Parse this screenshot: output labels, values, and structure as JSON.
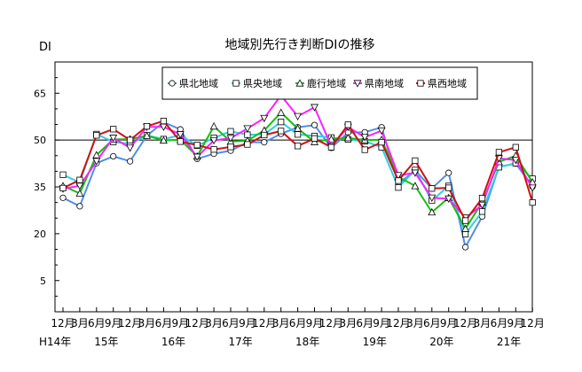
{
  "chart_data": {
    "type": "line",
    "title": "地域別先行き判断DIの推移",
    "ylabel": "DI",
    "ylim": [
      -5,
      75
    ],
    "yticks": [
      5,
      20,
      35,
      50,
      65
    ],
    "reference_line": 50,
    "legend_position": "top",
    "x_month_labels": [
      "12月",
      "3月",
      "6月",
      "9月",
      "12月",
      "3月",
      "6月",
      "9月",
      "12月",
      "3月",
      "6月",
      "9月",
      "12月",
      "3月",
      "6月",
      "9月",
      "12月",
      "3月",
      "6月",
      "9月",
      "12月",
      "3月",
      "6月",
      "9月",
      "12月",
      "3月",
      "6月",
      "9月",
      "12月"
    ],
    "year_labels": [
      {
        "label": "H14年",
        "at": 0
      },
      {
        "label": "15年",
        "at": 2.5
      },
      {
        "label": "16年",
        "at": 6.5
      },
      {
        "label": "17年",
        "at": 10.5
      },
      {
        "label": "18年",
        "at": 14.5
      },
      {
        "label": "19年",
        "at": 18.5
      },
      {
        "label": "20年",
        "at": 22.5
      },
      {
        "label": "21年",
        "at": 26.5
      }
    ],
    "series": [
      {
        "name": "県北地域",
        "color": "#4f8fea",
        "marker": "circle",
        "values": [
          31.5,
          28.8,
          42.6,
          44.8,
          43.2,
          51.4,
          55.7,
          53.4,
          44.0,
          45.6,
          46.6,
          49.3,
          49.3,
          52.0,
          54.1,
          54.8,
          47.5,
          52.4,
          52.5,
          54.1,
          35.9,
          40.3,
          34.5,
          39.5,
          15.7,
          25.5,
          41.4,
          42.5,
          35.1
        ]
      },
      {
        "name": "県央地域",
        "color": "#2ecfe0",
        "marker": "square",
        "values": [
          38.9,
          36.4,
          51.9,
          49.4,
          48.8,
          51.5,
          50.3,
          51.6,
          48.2,
          50.7,
          52.8,
          51.7,
          51.8,
          55.8,
          51.8,
          51.3,
          50.8,
          50.2,
          49.6,
          47.7,
          34.8,
          40.4,
          30.6,
          35.3,
          19.9,
          27.1,
          41.3,
          42.6,
          37.6
        ]
      },
      {
        "name": "鹿行地域",
        "color": "#10c010",
        "marker": "triangle-up",
        "values": [
          35.3,
          32.9,
          45.2,
          50.2,
          50.3,
          51.4,
          49.9,
          50.1,
          44.8,
          54.4,
          49.5,
          49.8,
          53.1,
          58.8,
          53.7,
          49.4,
          50.3,
          50.7,
          50.0,
          50.1,
          38.2,
          35.3,
          26.9,
          31.5,
          21.6,
          30.1,
          43.0,
          45.0,
          36.5
        ]
      },
      {
        "name": "県南地域",
        "color": "#ff20ff",
        "marker": "triangle-down",
        "values": [
          34.4,
          35.3,
          43.2,
          50.7,
          47.5,
          54.2,
          54.2,
          51.8,
          44.6,
          49.9,
          50.6,
          53.7,
          57.0,
          64.3,
          57.6,
          60.5,
          48.0,
          54.2,
          50.9,
          53.0,
          38.7,
          39.5,
          31.5,
          31.2,
          25.1,
          29.2,
          44.1,
          43.6,
          34.7
        ]
      },
      {
        "name": "県西地域",
        "color": "#d01010",
        "marker": "square",
        "values": [
          34.6,
          37.2,
          51.5,
          53.5,
          50.0,
          54.4,
          56.1,
          49.5,
          48.4,
          47.0,
          47.8,
          48.6,
          51.6,
          52.9,
          48.1,
          50.5,
          47.7,
          54.9,
          46.9,
          49.3,
          37.0,
          43.4,
          34.5,
          34.7,
          24.2,
          31.4,
          46.1,
          47.7,
          30.0
        ]
      }
    ]
  }
}
